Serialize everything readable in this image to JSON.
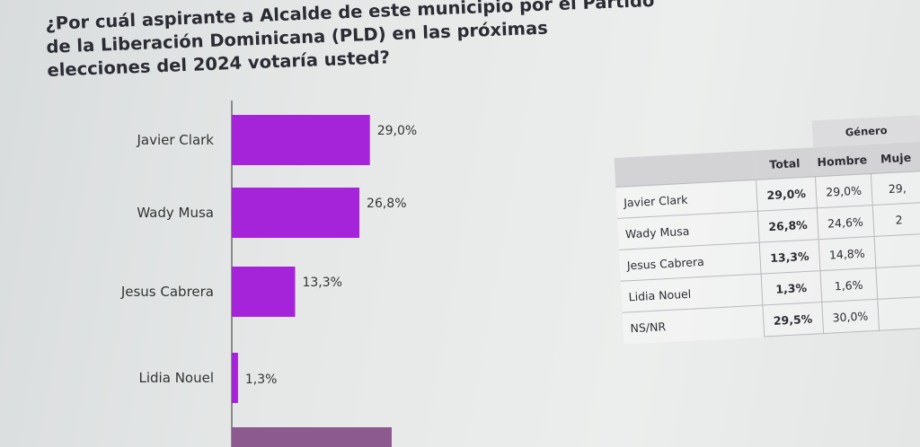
{
  "title": "¿Por cuál aspirante a Alcalde de este municipio por el Partido de la Liberación Dominicana (PLD) en las próximas elecciones del 2024 votaría usted?",
  "colors": {
    "bar": "#a523d8",
    "bar_partial": "#8c5a8e"
  },
  "chart_data": {
    "type": "bar",
    "orientation": "horizontal",
    "categories": [
      "Javier Clark",
      "Wady Musa",
      "Jesus Cabrera",
      "Lidia Nouel"
    ],
    "values": [
      29.0,
      26.8,
      13.3,
      1.3
    ],
    "value_labels": [
      "29,0%",
      "26,8%",
      "13,3%",
      "1,3%"
    ],
    "xlim": [
      0,
      100
    ]
  },
  "table": {
    "group_header": "Género",
    "columns": [
      "Total",
      "Hombre",
      "Muje"
    ],
    "rows": [
      {
        "name": "Javier Clark",
        "total": "29,0%",
        "hombre": "29,0%",
        "mujer": "29,"
      },
      {
        "name": "Wady Musa",
        "total": "26,8%",
        "hombre": "24,6%",
        "mujer": "2"
      },
      {
        "name": "Jesus Cabrera",
        "total": "13,3%",
        "hombre": "14,8%",
        "mujer": ""
      },
      {
        "name": "Lidia Nouel",
        "total": "1,3%",
        "hombre": "1,6%",
        "mujer": ""
      },
      {
        "name": "NS/NR",
        "total": "29,5%",
        "hombre": "30,0%",
        "mujer": ""
      }
    ]
  }
}
